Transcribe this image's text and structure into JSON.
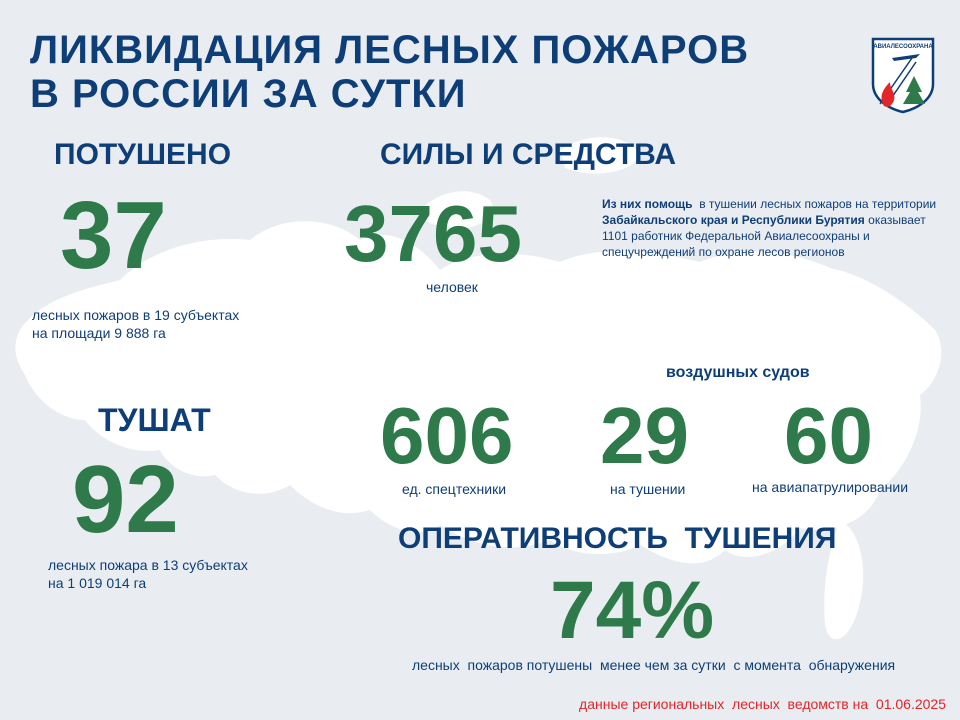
{
  "title": {
    "line1": "ЛИКВИДАЦИЯ ЛЕСНЫХ ПОЖАРОВ",
    "line2": "В РОССИИ ЗА СУТКИ"
  },
  "logo": {
    "text": "АВИАЛЕСООХРАНА",
    "icon": "avialesookhrana-emblem"
  },
  "extinguished": {
    "heading": "ПОТУШЕНО",
    "number": "37",
    "caption_line1": "лесных  пожаров в 19 субъектах",
    "caption_line2": "на площади  9 888 га"
  },
  "forces": {
    "heading": "СИЛЫ И СРЕДСТВА",
    "number": "3765",
    "unit": "человек",
    "note": {
      "part1": "Из них помощь",
      "part2": "  в тушении лесных пожаров на территории ",
      "part3": "Забайкальского края и Республики Бурятия",
      "part4": " оказывает 1101 работник Федеральной Авиалесоохраны и спецучреждений по охране лесов регионов"
    }
  },
  "equipment": {
    "number": "606",
    "caption": "ед. спецтехники"
  },
  "aircraft": {
    "heading": "воздушных судов",
    "firefighting_number": "29",
    "firefighting_caption": "на тушении",
    "patrol_number": "60",
    "patrol_caption": "на авиапатрулировании"
  },
  "burning": {
    "heading": "ТУШАТ",
    "number": "92",
    "caption_line1": "лесных пожара в 13 субъектах",
    "caption_line2": "на 1 019 014 га"
  },
  "efficiency": {
    "heading": "ОПЕРАТИВНОСТЬ  ТУШЕНИЯ",
    "number": "74%",
    "caption": "лесных  пожаров потушены  менее чем за сутки  с момента  обнаружения"
  },
  "footer": {
    "text": "данные региональных  лесных  ведомств на  01.06.2025"
  },
  "colors": {
    "background": "#e9edf1",
    "map": "#ffffff",
    "heading_blue": "#0e3e78",
    "number_green": "#2e7a4a",
    "footer_red": "#e2262a"
  }
}
